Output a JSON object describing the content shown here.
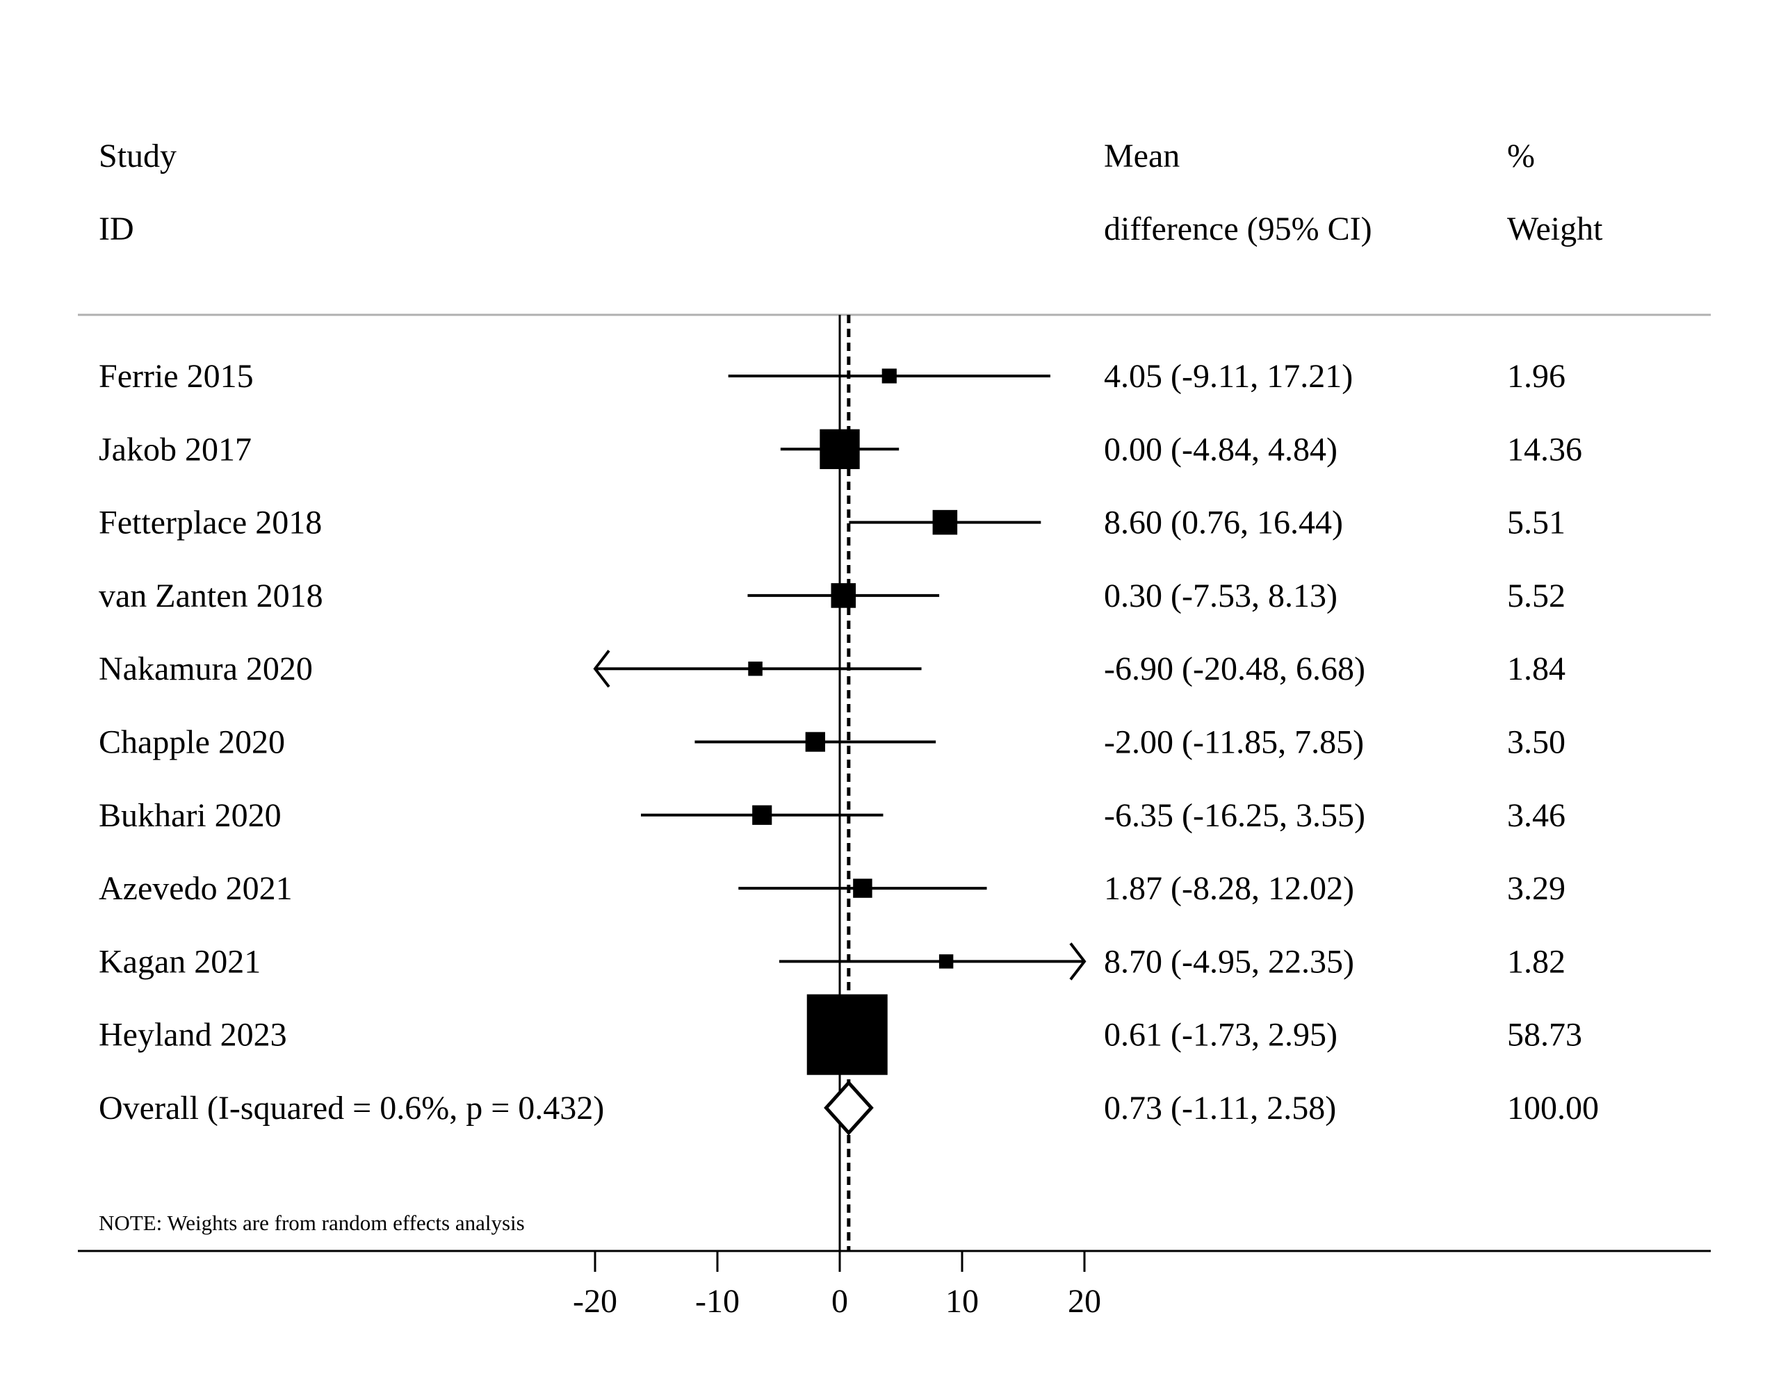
{
  "headers": {
    "study_line1": "Study",
    "study_line2": "ID",
    "es_line1": "Mean",
    "es_line2": "difference (95% CI)",
    "wt_line1": "%",
    "wt_line2": "Weight"
  },
  "note": "NOTE: Weights are from random effects analysis",
  "chart_data": {
    "type": "forest",
    "x_ticks": [
      -20,
      -10,
      0,
      10,
      20
    ],
    "x_tick_labels": [
      "-20",
      "-10",
      "0",
      "10",
      "20"
    ],
    "xlim": [
      -20,
      20
    ],
    "null_line": 0,
    "pooled_line": 0.73,
    "studies": [
      {
        "id": "Ferrie 2015",
        "es": 4.05,
        "lower": -9.11,
        "upper": 17.21,
        "es_text": "4.05 (-9.11, 17.21)",
        "weight": 1.96,
        "weight_text": "1.96"
      },
      {
        "id": "Jakob 2017",
        "es": 0.0,
        "lower": -4.84,
        "upper": 4.84,
        "es_text": "0.00 (-4.84, 4.84)",
        "weight": 14.36,
        "weight_text": "14.36"
      },
      {
        "id": "Fetterplace 2018",
        "es": 8.6,
        "lower": 0.76,
        "upper": 16.44,
        "es_text": "8.60 (0.76, 16.44)",
        "weight": 5.51,
        "weight_text": "5.51"
      },
      {
        "id": "van Zanten 2018",
        "es": 0.3,
        "lower": -7.53,
        "upper": 8.13,
        "es_text": "0.30 (-7.53, 8.13)",
        "weight": 5.52,
        "weight_text": "5.52"
      },
      {
        "id": "Nakamura 2020",
        "es": -6.9,
        "lower": -20.48,
        "upper": 6.68,
        "es_text": "-6.90 (-20.48, 6.68)",
        "weight": 1.84,
        "weight_text": "1.84"
      },
      {
        "id": "Chapple 2020",
        "es": -2.0,
        "lower": -11.85,
        "upper": 7.85,
        "es_text": "-2.00 (-11.85, 7.85)",
        "weight": 3.5,
        "weight_text": "3.50"
      },
      {
        "id": "Bukhari 2020",
        "es": -6.35,
        "lower": -16.25,
        "upper": 3.55,
        "es_text": "-6.35 (-16.25, 3.55)",
        "weight": 3.46,
        "weight_text": "3.46"
      },
      {
        "id": "Azevedo 2021",
        "es": 1.87,
        "lower": -8.28,
        "upper": 12.02,
        "es_text": "1.87 (-8.28, 12.02)",
        "weight": 3.29,
        "weight_text": "3.29"
      },
      {
        "id": "Kagan 2021",
        "es": 8.7,
        "lower": -4.95,
        "upper": 22.35,
        "es_text": "8.70 (-4.95, 22.35)",
        "weight": 1.82,
        "weight_text": "1.82"
      },
      {
        "id": "Heyland 2023",
        "es": 0.61,
        "lower": -1.73,
        "upper": 2.95,
        "es_text": "0.61 (-1.73, 2.95)",
        "weight": 58.73,
        "weight_text": "58.73"
      }
    ],
    "overall": {
      "id": "Overall  (I-squared = 0.6%, p = 0.432)",
      "es": 0.73,
      "lower": -1.11,
      "upper": 2.58,
      "es_text": "0.73 (-1.11, 2.58)",
      "weight": 100.0,
      "weight_text": "100.00"
    }
  }
}
